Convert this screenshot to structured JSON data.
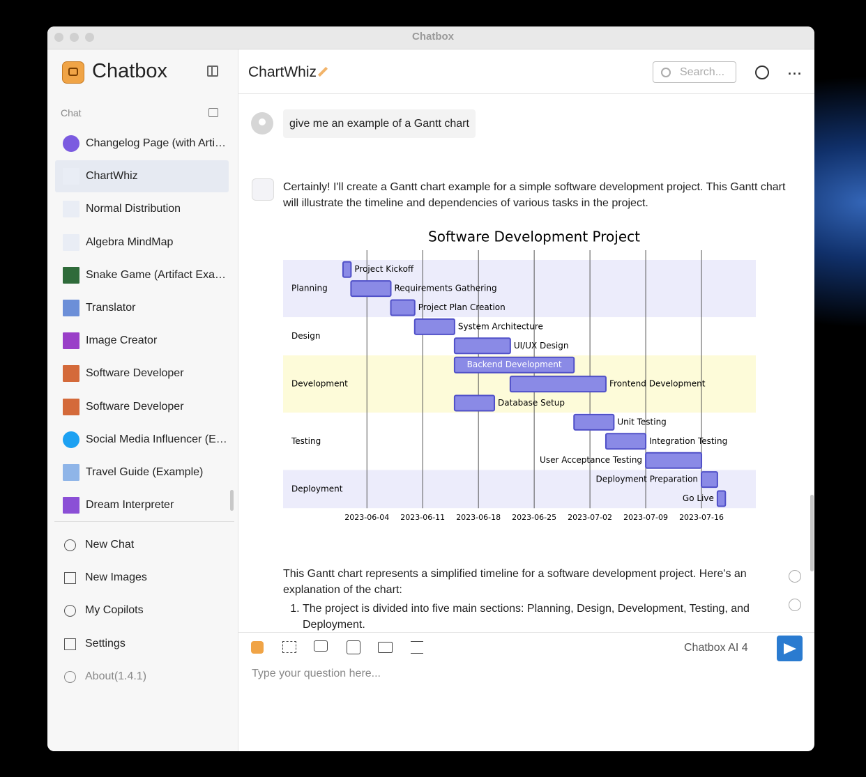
{
  "window": {
    "title": "Chatbox"
  },
  "sidebar": {
    "app_name": "Chatbox",
    "section_label": "Chat",
    "chats": [
      "Changelog Page (with Arti…",
      "ChartWhiz",
      "Normal Distribution",
      "Algebra MindMap",
      "Snake Game (Artifact Exa…",
      "Translator",
      "Image Creator",
      "Software Developer",
      "Software Developer",
      "Social Media Influencer (E…",
      "Travel Guide (Example)",
      "Dream Interpreter"
    ],
    "menu": [
      "New Chat",
      "New Images",
      "My Copilots",
      "Settings",
      "About(1.4.1)"
    ]
  },
  "header": {
    "title": "ChartWhiz",
    "search_placeholder": "Search..."
  },
  "messages": {
    "user": "give me an example of a Gantt chart",
    "assistant_intro": "Certainly! I'll create a Gantt chart example for a simple software development project. This Gantt chart will illustrate the timeline and dependencies of various tasks in the project.",
    "assistant_followup": "This Gantt chart represents a simplified timeline for a software development project. Here's an explanation of the chart:",
    "list": [
      "The project is divided into five main sections: Planning, Design, Development, Testing, and Deployment."
    ]
  },
  "chart_data": {
    "type": "gantt",
    "title": "Software Development Project",
    "xlim": [
      "2023-05-25",
      "2023-07-23"
    ],
    "xticks": [
      "2023-06-04",
      "2023-06-11",
      "2023-06-18",
      "2023-06-25",
      "2023-07-02",
      "2023-07-09",
      "2023-07-16"
    ],
    "grid": true,
    "bar_color": "#8a8ae6",
    "bar_stroke": "#5050c8",
    "sections": [
      {
        "name": "Planning",
        "color": "#ececfb",
        "tasks": [
          {
            "name": "Project Kickoff",
            "start": "2023-06-01",
            "end": "2023-06-02"
          },
          {
            "name": "Requirements Gathering",
            "start": "2023-06-02",
            "end": "2023-06-07"
          },
          {
            "name": "Project Plan Creation",
            "start": "2023-06-07",
            "end": "2023-06-10"
          }
        ]
      },
      {
        "name": "Design",
        "color": "#ffffff",
        "tasks": [
          {
            "name": "System Architecture",
            "start": "2023-06-10",
            "end": "2023-06-15"
          },
          {
            "name": "UI/UX Design",
            "start": "2023-06-15",
            "end": "2023-06-22"
          }
        ]
      },
      {
        "name": "Development",
        "color": "#fdfbd9",
        "tasks": [
          {
            "name": "Backend Development",
            "start": "2023-06-15",
            "end": "2023-06-30"
          },
          {
            "name": "Frontend Development",
            "start": "2023-06-22",
            "end": "2023-07-04"
          },
          {
            "name": "Database Setup",
            "start": "2023-06-15",
            "end": "2023-06-20"
          }
        ]
      },
      {
        "name": "Testing",
        "color": "#ffffff",
        "tasks": [
          {
            "name": "Unit Testing",
            "start": "2023-06-30",
            "end": "2023-07-05"
          },
          {
            "name": "Integration Testing",
            "start": "2023-07-04",
            "end": "2023-07-09"
          },
          {
            "name": "User Acceptance Testing",
            "start": "2023-07-09",
            "end": "2023-07-16"
          }
        ]
      },
      {
        "name": "Deployment",
        "color": "#ececfb",
        "tasks": [
          {
            "name": "Deployment Preparation",
            "start": "2023-07-16",
            "end": "2023-07-18"
          },
          {
            "name": "Go Live",
            "start": "2023-07-18",
            "end": "2023-07-19"
          }
        ]
      }
    ]
  },
  "composer": {
    "model": "Chatbox AI 4",
    "placeholder": "Type your question here..."
  }
}
